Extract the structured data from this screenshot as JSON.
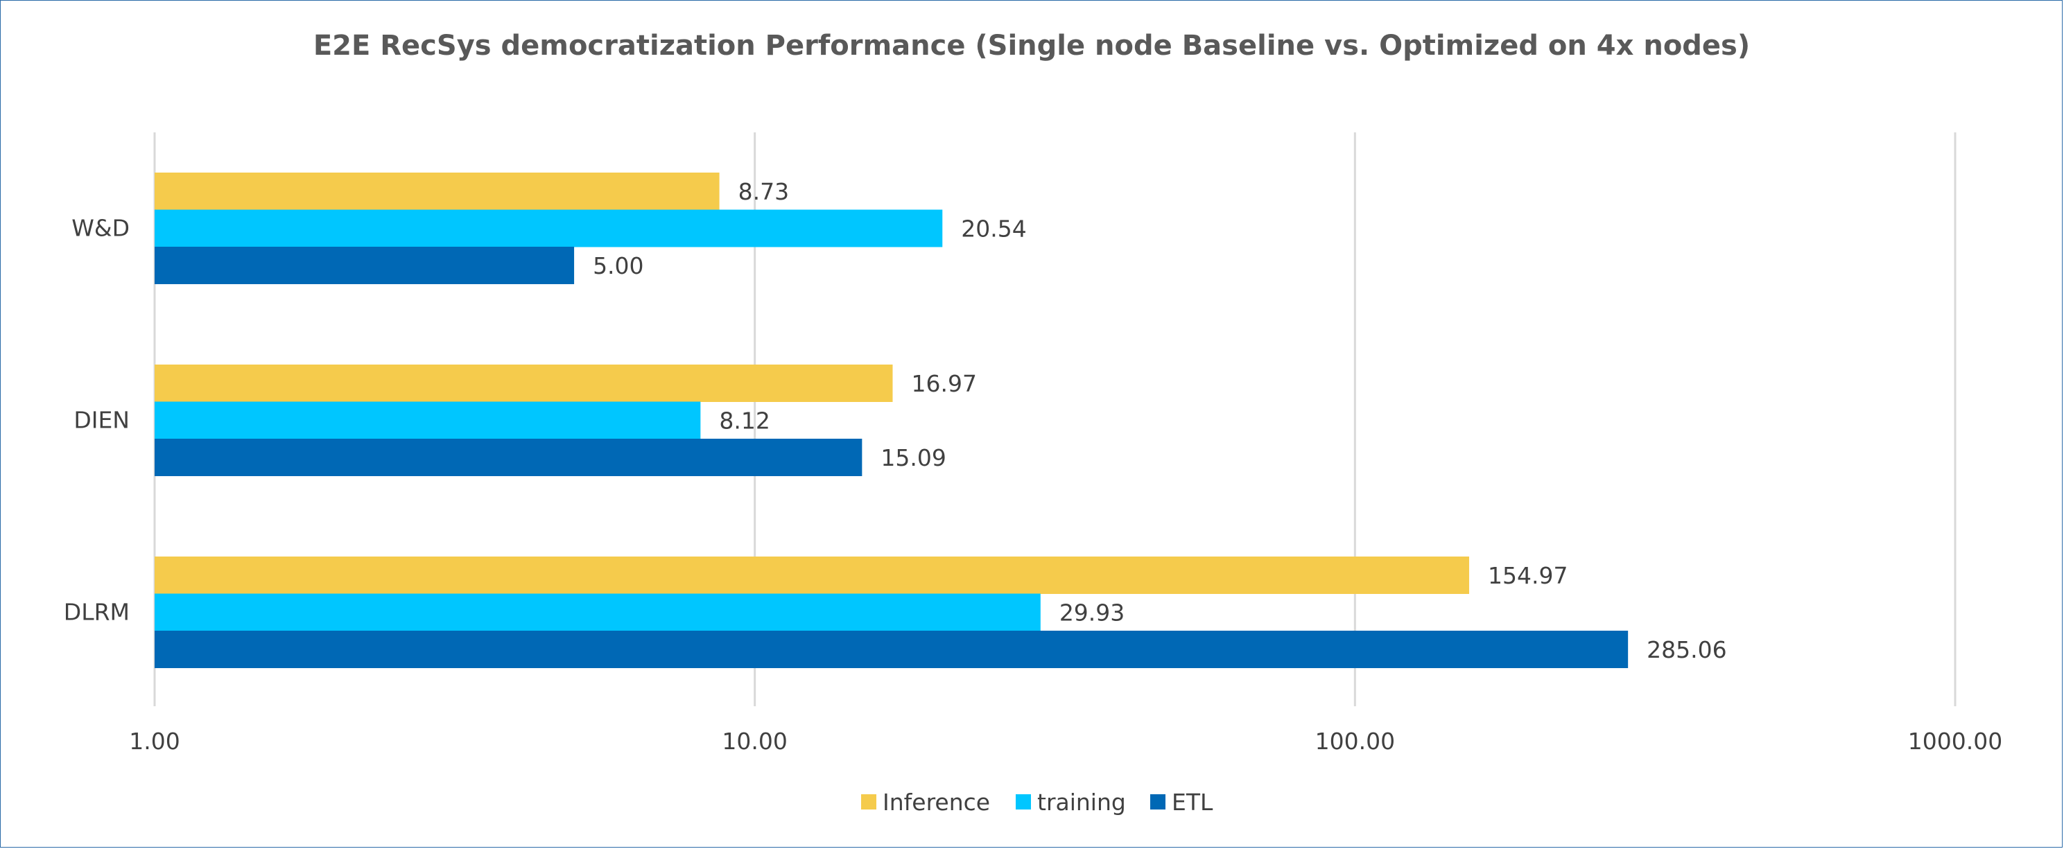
{
  "chart_data": {
    "type": "bar",
    "orientation": "horizontal",
    "title": "E2E RecSys democratization Performance (Single node Baseline  vs. Optimized on 4x nodes)",
    "xlabel": "",
    "ylabel": "",
    "x_scale": "log",
    "xlim": [
      1,
      1000
    ],
    "x_ticks": [
      1,
      10,
      100,
      1000
    ],
    "x_tick_labels": [
      "1.00",
      "10.00",
      "100.00",
      "1000.00"
    ],
    "categories": [
      "W&D",
      "DIEN",
      "DLRM"
    ],
    "series": [
      {
        "name": "Inference",
        "color": "#f5cb4c",
        "values": [
          8.73,
          16.97,
          154.97
        ],
        "labels": [
          "8.73",
          "16.97",
          "154.97"
        ]
      },
      {
        "name": "training",
        "color": "#00c6ff",
        "values": [
          20.54,
          8.12,
          29.93
        ],
        "labels": [
          "20.54",
          "8.12",
          "29.93"
        ]
      },
      {
        "name": "ETL",
        "color": "#0068b5",
        "values": [
          5.0,
          15.09,
          285.06
        ],
        "labels": [
          "5.00",
          "15.09",
          "285.06"
        ]
      }
    ],
    "grid": true,
    "legend_position": "bottom"
  }
}
